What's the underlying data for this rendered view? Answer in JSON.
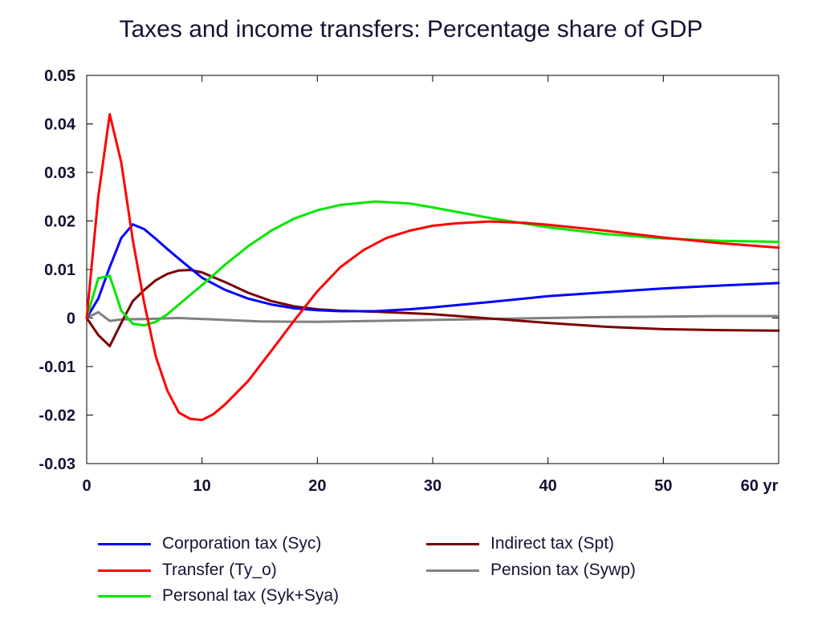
{
  "chart_data": {
    "type": "line",
    "title": "Taxes and income transfers: Percentage share of GDP",
    "xlabel": "",
    "ylabel": "",
    "xlim": [
      0,
      60
    ],
    "ylim": [
      -0.03,
      0.05
    ],
    "xticks": [
      0,
      10,
      20,
      30,
      40,
      50,
      60
    ],
    "xtick_labels": [
      "0",
      "10",
      "20",
      "30",
      "40",
      "50",
      "60 yr"
    ],
    "yticks": [
      -0.03,
      -0.02,
      -0.01,
      0,
      0.01,
      0.02,
      0.03,
      0.04,
      0.05
    ],
    "ytick_labels": [
      "-0.03",
      "-0.02",
      "-0.01",
      "0",
      "0.01",
      "0.02",
      "0.03",
      "0.04",
      "0.05"
    ],
    "grid": false,
    "legend_position": "bottom",
    "series": [
      {
        "name": "Corporation tax (Syc)",
        "color": "#0000ff",
        "x": [
          0,
          1,
          2,
          3,
          4,
          5,
          6,
          7,
          8,
          10,
          12,
          14,
          16,
          18,
          20,
          22,
          25,
          28,
          30,
          35,
          40,
          45,
          50,
          55,
          60
        ],
        "y": [
          0,
          0.004,
          0.0105,
          0.0165,
          0.0193,
          0.0183,
          0.0163,
          0.0142,
          0.0122,
          0.0083,
          0.0058,
          0.004,
          0.0028,
          0.002,
          0.0016,
          0.0014,
          0.0014,
          0.0018,
          0.0022,
          0.0033,
          0.0045,
          0.0053,
          0.0061,
          0.0067,
          0.0072
        ]
      },
      {
        "name": "Transfer (Ty_o)",
        "color": "#ff0000",
        "x": [
          0,
          1,
          2,
          3,
          4,
          5,
          6,
          7,
          8,
          9,
          10,
          11,
          12,
          14,
          16,
          18,
          20,
          22,
          24,
          26,
          28,
          30,
          32,
          35,
          38,
          40,
          45,
          50,
          55,
          60
        ],
        "y": [
          0,
          0.025,
          0.042,
          0.032,
          0.016,
          0.003,
          -0.008,
          -0.015,
          -0.0195,
          -0.0208,
          -0.021,
          -0.0198,
          -0.0178,
          -0.013,
          -0.0068,
          -0.0005,
          0.0055,
          0.0105,
          0.014,
          0.0165,
          0.018,
          0.019,
          0.0195,
          0.0199,
          0.0196,
          0.0192,
          0.018,
          0.0166,
          0.0154,
          0.0145
        ]
      },
      {
        "name": "Personal tax (Syk+Sya)",
        "color": "#00e600",
        "x": [
          0,
          1,
          2,
          3,
          4,
          5,
          6,
          7,
          8,
          10,
          12,
          14,
          16,
          18,
          20,
          22,
          25,
          28,
          30,
          35,
          40,
          45,
          50,
          55,
          60
        ],
        "y": [
          0,
          0.0082,
          0.0087,
          0.0015,
          -0.0012,
          -0.0015,
          -0.0008,
          0.0008,
          0.0028,
          0.0068,
          0.011,
          0.0148,
          0.018,
          0.0205,
          0.0222,
          0.0233,
          0.024,
          0.0236,
          0.0228,
          0.0206,
          0.0187,
          0.0173,
          0.0164,
          0.0159,
          0.0157
        ]
      },
      {
        "name": "Indirect tax (Spt)",
        "color": "#7a0000",
        "x": [
          0,
          1,
          2,
          3,
          4,
          5,
          6,
          7,
          8,
          9,
          10,
          12,
          14,
          16,
          18,
          20,
          22,
          25,
          30,
          35,
          40,
          45,
          50,
          55,
          60
        ],
        "y": [
          0,
          -0.0035,
          -0.0058,
          -0.001,
          0.0035,
          0.0058,
          0.0078,
          0.0091,
          0.0098,
          0.0099,
          0.0094,
          0.0074,
          0.0052,
          0.0035,
          0.0024,
          0.0018,
          0.0015,
          0.0013,
          0.0008,
          -0.0001,
          -0.001,
          -0.0018,
          -0.0023,
          -0.0025,
          -0.0026
        ]
      },
      {
        "name": "Pension tax (Sywp)",
        "color": "#808080",
        "x": [
          0,
          1,
          2,
          3,
          5,
          8,
          10,
          15,
          20,
          25,
          30,
          35,
          40,
          45,
          50,
          55,
          60
        ],
        "y": [
          0,
          0.0012,
          -0.0006,
          -0.0003,
          -0.0002,
          0.0,
          -0.0002,
          -0.0007,
          -0.0008,
          -0.0006,
          -0.0004,
          -0.0002,
          0.0,
          0.0002,
          0.0003,
          0.0004,
          0.0004
        ]
      }
    ]
  },
  "legend": {
    "items": [
      {
        "label": "Corporation tax (Syc)",
        "color": "#0000ff"
      },
      {
        "label": "Indirect tax (Spt)",
        "color": "#7a0000"
      },
      {
        "label": "Transfer (Ty_o)",
        "color": "#ff0000"
      },
      {
        "label": "Pension tax (Sywp)",
        "color": "#808080"
      },
      {
        "label": "Personal tax (Syk+Sya)",
        "color": "#00e600"
      }
    ]
  }
}
